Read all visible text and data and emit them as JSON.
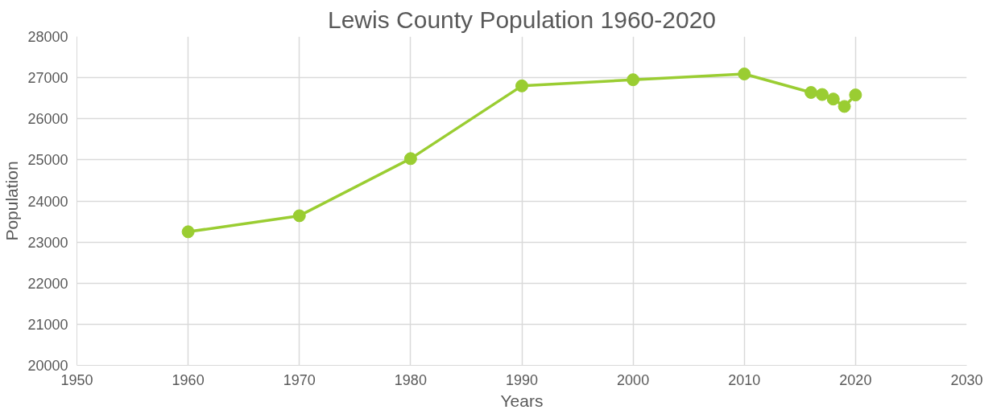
{
  "chart_data": {
    "type": "line",
    "title": "Lewis County Population 1960-2020",
    "xlabel": "Years",
    "ylabel": "Population",
    "x": [
      1960,
      1970,
      1980,
      1990,
      2000,
      2010,
      2016,
      2017,
      2018,
      2019,
      2020
    ],
    "series": [
      {
        "color": "#9acd32",
        "values": [
          23250,
          23640,
          25030,
          26800,
          26950,
          27090,
          26640,
          26590,
          26480,
          26300,
          26580
        ]
      }
    ],
    "xlim": [
      1950,
      2030
    ],
    "xticks": [
      1950,
      1960,
      1970,
      1980,
      1990,
      2000,
      2010,
      2020,
      2030
    ],
    "ylim": [
      20000,
      28000
    ],
    "yticks": [
      20000,
      21000,
      22000,
      23000,
      24000,
      25000,
      26000,
      27000,
      28000
    ],
    "grid": true,
    "marker": "circle",
    "line_style": "solid"
  }
}
